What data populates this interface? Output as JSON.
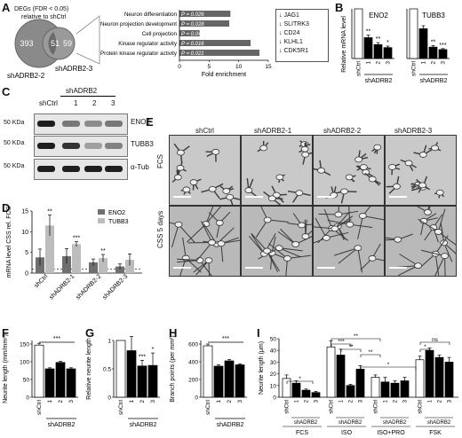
{
  "panels": {
    "A": "A",
    "B": "B",
    "C": "C",
    "D": "D",
    "E": "E",
    "F": "F",
    "G": "G",
    "H": "H",
    "I": "I"
  },
  "panelA": {
    "degs_title_line1": "DEGs (FDR < 0.05)",
    "degs_title_line2": "relative to shCtrl",
    "venn": {
      "left_only": "393",
      "overlap": "51",
      "right_only": "59",
      "left_label": "shADRB2-2",
      "right_label": "shADRB2-3"
    },
    "go_terms": [
      {
        "term": "Neuron differentiation",
        "p": "P = 0.026",
        "fold": 8.6
      },
      {
        "term": "Neuron projection development",
        "p": "P = 0.028",
        "fold": 8.4
      },
      {
        "term": "Cell projection",
        "p": "P = 0.044",
        "fold": 3.4
      },
      {
        "term": "Kinase regulator activity",
        "p": "P = 0.016",
        "fold": 12.0
      },
      {
        "term": "Protein kinase regulator activity",
        "p": "P = 0.021",
        "fold": 13.5
      }
    ],
    "xticks": [
      "0",
      "5",
      "10",
      "15"
    ],
    "xmax": 15,
    "xlabel": "Fold enrichment",
    "genes": [
      "↓ JAG1",
      "↓ SLITRK3",
      "↓ CD24",
      "↓ KLHL1",
      "↓ CDK5R1"
    ]
  },
  "panelB": {
    "ylabel": "Relative mRNA level",
    "group": "shADRB2",
    "charts": [
      {
        "title": "ENO2",
        "categories": [
          "shCtrl",
          "1",
          "2",
          "3"
        ],
        "values": [
          1.0,
          0.42,
          0.28,
          0.22
        ],
        "errors": [
          0.0,
          0.05,
          0.04,
          0.03
        ],
        "sig": [
          "",
          "**",
          "**",
          "*"
        ]
      },
      {
        "title": "TUBB3",
        "categories": [
          "shCtrl",
          "1",
          "2",
          "3"
        ],
        "values": [
          1.0,
          0.6,
          0.23,
          0.18
        ],
        "errors": [
          0.0,
          0.06,
          0.03,
          0.02
        ],
        "sig": [
          "",
          "",
          "**",
          "***"
        ]
      }
    ],
    "ymax": 1
  },
  "panelC": {
    "group": "shADRB2",
    "lanes": [
      "shCtrl",
      "1",
      "2",
      "3"
    ],
    "markers": [
      "50 KDa",
      "50 KDa",
      "50 KDa"
    ],
    "proteins": [
      "ENO2",
      "TUBB3",
      "α-Tub"
    ],
    "band_intensity": {
      "ENO2": [
        1.0,
        0.55,
        0.45,
        0.55
      ],
      "TUBB3": [
        1.0,
        0.9,
        0.35,
        0.5
      ],
      "α-Tub": [
        1.0,
        1.0,
        1.0,
        1.0
      ]
    }
  },
  "panelD": {
    "ylabel": "mRNA level CSS rel. FCS",
    "legend": [
      "ENO2",
      "TUBB3"
    ],
    "colors": [
      "#6f6f6f",
      "#bdbdbd"
    ],
    "categories": [
      "shCtrl",
      "shADRB2-1",
      "shADRB2-2",
      "shADRB2-3"
    ],
    "yticks": [
      "0",
      "5",
      "10",
      "15"
    ],
    "ymax": 15,
    "series": [
      {
        "name": "ENO2",
        "values": [
          3.8,
          4.1,
          2.6,
          1.6
        ],
        "errors": [
          2.0,
          1.8,
          0.8,
          0.6
        ],
        "sig": [
          "",
          "",
          "",
          ""
        ]
      },
      {
        "name": "TUBB3",
        "values": [
          11.5,
          7.0,
          3.6,
          3.2
        ],
        "errors": [
          2.5,
          0.6,
          0.9,
          1.4
        ],
        "sig": [
          "**",
          "***",
          "**",
          ""
        ]
      }
    ]
  },
  "panelE": {
    "columns": [
      "shCtrl",
      "shADRB2-1",
      "shADRB2-2",
      "shADRB2-3"
    ],
    "rows": [
      "FCS",
      "CSS 5 days"
    ]
  },
  "panelF": {
    "ylabel": "Neurite length (mm/mm²)",
    "group": "shADRB2",
    "categories": [
      "shCtrl",
      "1",
      "2",
      "3"
    ],
    "values": [
      147,
      80,
      98,
      80
    ],
    "errors": [
      5,
      3,
      3,
      3
    ],
    "yticks": [
      "0",
      "50",
      "100",
      "150"
    ],
    "ymax": 160,
    "sig": "***"
  },
  "panelG": {
    "ylabel": "Relative neurite length",
    "group": "shADRB2",
    "categories": [
      "shCtrl",
      "1",
      "2",
      "3"
    ],
    "values": [
      1.0,
      0.82,
      0.55,
      0.56
    ],
    "errors": [
      0.0,
      0.25,
      0.1,
      0.22
    ],
    "yticks": [
      "0",
      "0.5",
      "1"
    ],
    "ymax": 1.0,
    "sig": [
      "",
      "",
      "***",
      "*"
    ]
  },
  "panelH": {
    "ylabel": "Branch points (per mm²)",
    "group": "shADRB2",
    "categories": [
      "shCtrl",
      "1",
      "2",
      "3"
    ],
    "values": [
      580,
      350,
      410,
      365
    ],
    "errors": [
      20,
      15,
      15,
      10
    ],
    "yticks": [
      "0",
      "200",
      "400",
      "600"
    ],
    "ymax": 640,
    "sig": "***"
  },
  "panelI": {
    "ylabel": "Neurite length (μm)",
    "yticks": [
      "0",
      "10",
      "20",
      "30",
      "40",
      "50"
    ],
    "ymax": 50,
    "conditions": [
      {
        "name": "FCS",
        "values": [
          16,
          12,
          6,
          4
        ],
        "errors": [
          3,
          2,
          1,
          1
        ]
      },
      {
        "name": "ISO",
        "values": [
          43,
          36,
          10,
          24
        ],
        "errors": [
          5,
          5,
          1,
          3
        ]
      },
      {
        "name": "ISO+PRO",
        "values": [
          17,
          13,
          12,
          14
        ],
        "errors": [
          2,
          4,
          2,
          3
        ]
      },
      {
        "name": "FSK",
        "values": [
          32,
          40,
          34,
          30
        ],
        "errors": [
          3,
          2,
          2,
          4
        ]
      }
    ],
    "lanes": [
      "shCtrl",
      "1",
      "2",
      "3"
    ],
    "group": "shADRB2",
    "sig_labels": [
      "*",
      "***",
      "**",
      "**",
      "**",
      "*",
      "*",
      "ns"
    ]
  }
}
